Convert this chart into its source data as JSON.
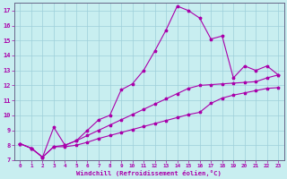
{
  "xlabel": "Windchill (Refroidissement éolien,°C)",
  "background_color": "#c8eef0",
  "grid_color": "#9ecfda",
  "line_color": "#aa00aa",
  "x_values": [
    0,
    1,
    2,
    3,
    4,
    5,
    6,
    7,
    8,
    9,
    10,
    11,
    12,
    13,
    14,
    15,
    16,
    17,
    18,
    19,
    20,
    21,
    22,
    23
  ],
  "curve1": [
    8.1,
    7.8,
    7.2,
    9.2,
    8.0,
    8.3,
    9.0,
    9.7,
    10.0,
    11.7,
    12.1,
    13.0,
    14.3,
    15.7,
    17.3,
    17.0,
    16.5,
    15.1,
    15.3,
    12.5,
    13.3,
    13.0,
    13.3,
    12.7
  ],
  "curve2": [
    8.1,
    7.8,
    7.2,
    7.9,
    8.0,
    8.3,
    8.65,
    9.0,
    9.35,
    9.7,
    10.05,
    10.4,
    10.75,
    11.1,
    11.45,
    11.8,
    12.0,
    12.05,
    12.1,
    12.15,
    12.2,
    12.25,
    12.5,
    12.7
  ],
  "curve3": [
    8.1,
    7.8,
    7.2,
    7.9,
    7.9,
    8.0,
    8.2,
    8.45,
    8.65,
    8.85,
    9.05,
    9.25,
    9.45,
    9.65,
    9.85,
    10.05,
    10.2,
    10.8,
    11.15,
    11.35,
    11.5,
    11.65,
    11.8,
    11.85
  ],
  "ylim": [
    7,
    17.5
  ],
  "xlim": [
    -0.5,
    23.5
  ],
  "yticks": [
    7,
    8,
    9,
    10,
    11,
    12,
    13,
    14,
    15,
    16,
    17
  ],
  "xticks": [
    0,
    1,
    2,
    3,
    4,
    5,
    6,
    7,
    8,
    9,
    10,
    11,
    12,
    13,
    14,
    15,
    16,
    17,
    18,
    19,
    20,
    21,
    22,
    23
  ]
}
